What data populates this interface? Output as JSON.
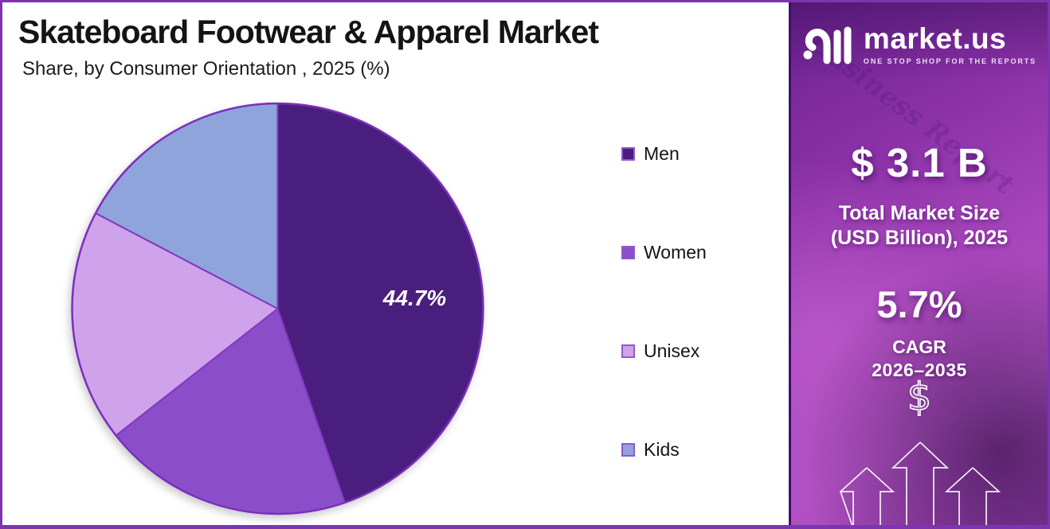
{
  "chart_data": {
    "type": "pie",
    "title": "Skateboard Footwear & Apparel Market",
    "subtitle": "Share, by Consumer Orientation , 2025 (%)",
    "legend_position": "right",
    "start_angle_deg": 0,
    "direction": "clockwise",
    "slices": [
      {
        "name": "Men",
        "value": 44.7,
        "label": "44.7%",
        "color": "#4A1E7E"
      },
      {
        "name": "Women",
        "value": 19.7,
        "label": "",
        "color": "#8A4FC8"
      },
      {
        "name": "Unisex",
        "value": 18.3,
        "label": "",
        "color": "#CFA2EC"
      },
      {
        "name": "Kids",
        "value": 17.3,
        "label": "",
        "color": "#8EA4DB"
      }
    ],
    "slice_border_color": "#8238BE",
    "outer_ring_color": "#7B2FBE"
  },
  "sidebar": {
    "logo": {
      "brand": "market.us",
      "tagline": "ONE STOP SHOP FOR THE REPORTS"
    },
    "watermark": "Business Report",
    "market_size": {
      "value": "$ 3.1 B",
      "label_line1": "Total Market Size",
      "label_line2": "(USD Billion), 2025"
    },
    "cagr": {
      "value": "5.7%",
      "label": "CAGR",
      "period": "2026–2035"
    },
    "currency_icon": "$"
  },
  "colors": {
    "frame_border": "#7C35AE",
    "sidebar_border": "#3F1068",
    "sidebar_gradient_start": "#6B2191",
    "sidebar_gradient_mid": "#A846BC",
    "sidebar_gradient_end": "#B151C3",
    "title_text": "#141414",
    "pie_label_text": "#FFFFFF"
  }
}
